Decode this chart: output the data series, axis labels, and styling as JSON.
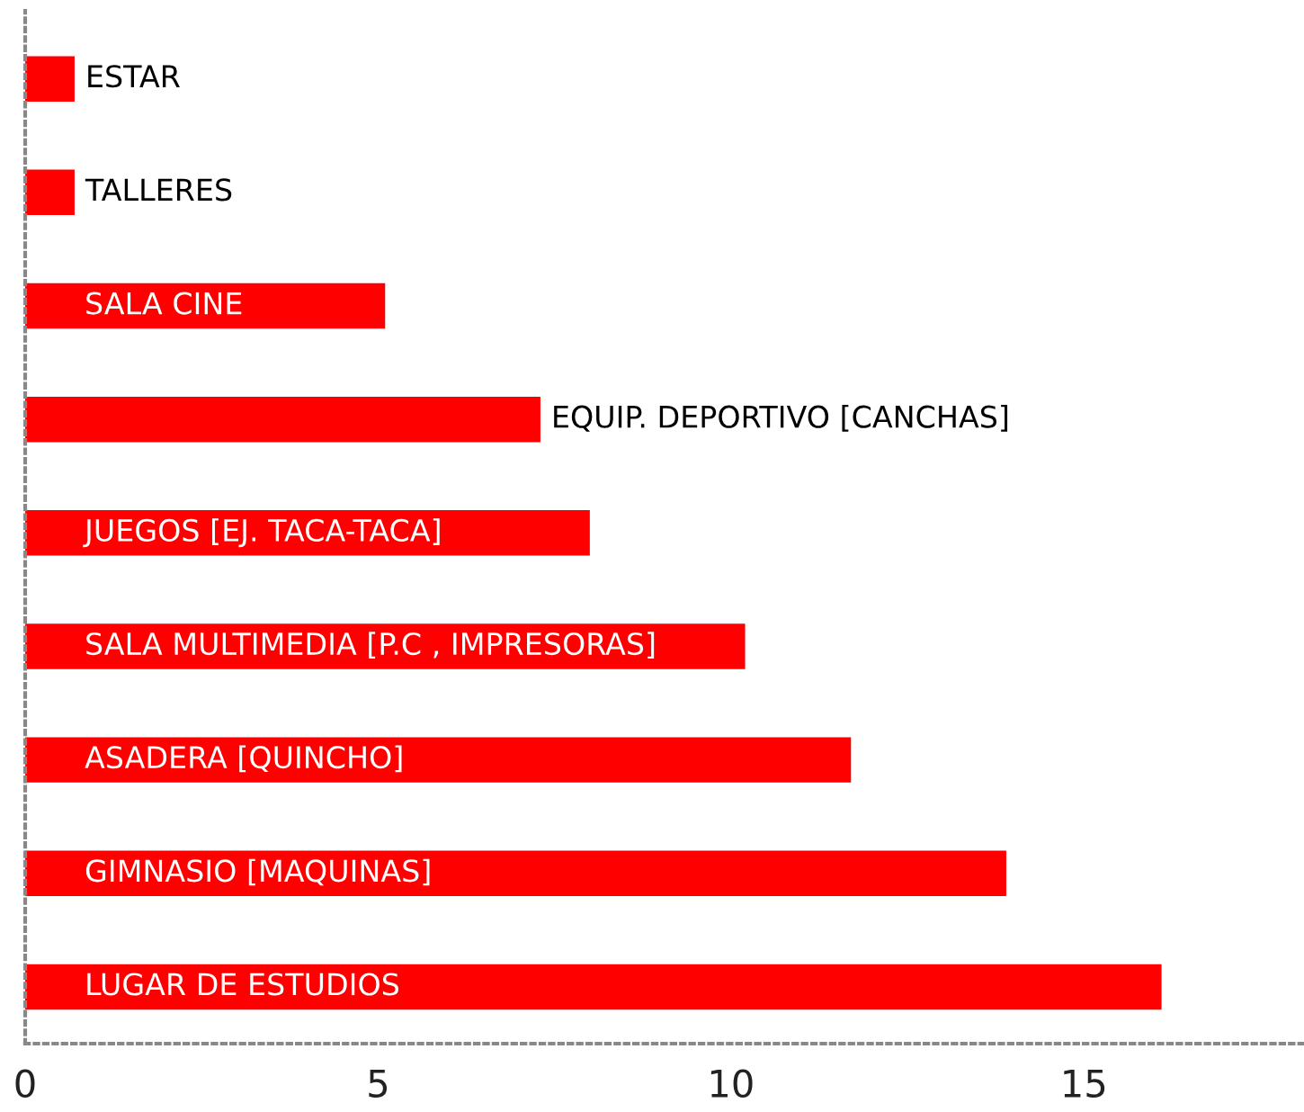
{
  "chart_data": {
    "type": "bar",
    "orientation": "horizontal",
    "categories": [
      "ESTAR",
      "TALLERES",
      "SALA CINE",
      "EQUIP. DEPORTIVO [CANCHAS]",
      "JUEGOS [EJ. TACA-TACA]",
      "SALA MULTIMEDIA [P.C , IMPRESORAS]",
      "ASADERA [QUINCHO]",
      "GIMNASIO [MAQUINAS]",
      "LUGAR DE ESTUDIOS"
    ],
    "values": [
      0.7,
      0.7,
      5.1,
      7.3,
      8.0,
      10.2,
      11.7,
      13.9,
      16.1
    ],
    "color": "#ff0000",
    "xlim": [
      0,
      18.1
    ],
    "xticks": [
      0,
      5,
      10,
      15
    ],
    "grid": false,
    "legend": false
  }
}
